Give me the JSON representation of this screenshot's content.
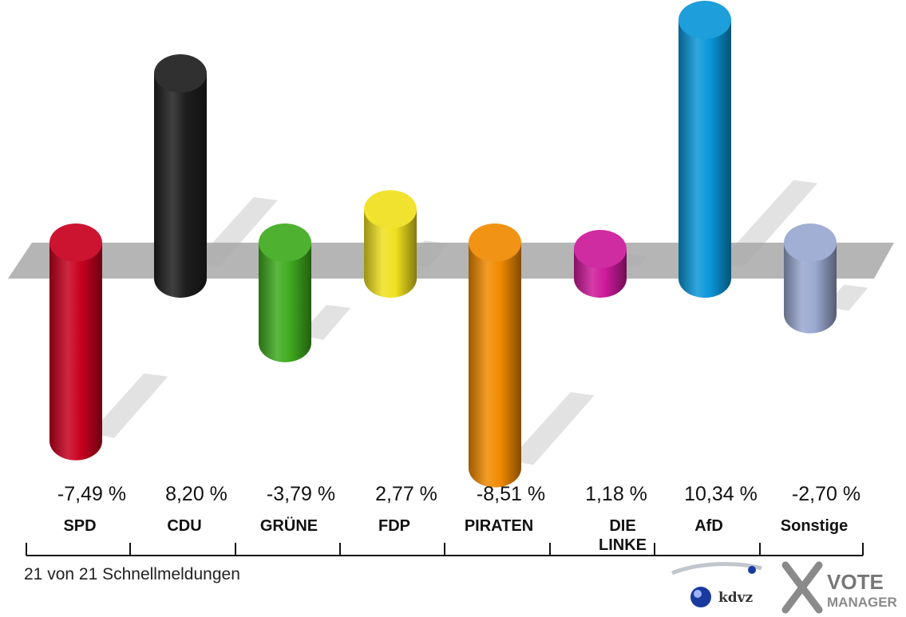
{
  "chart_data": {
    "type": "bar",
    "categories": [
      "SPD",
      "CDU",
      "GRÜNE",
      "FDP",
      "PIRATEN",
      "DIE LINKE",
      "AfD",
      "Sonstige"
    ],
    "category_lines": [
      [
        "SPD"
      ],
      [
        "CDU"
      ],
      [
        "GRÜNE"
      ],
      [
        "FDP"
      ],
      [
        "PIRATEN"
      ],
      [
        "DIE",
        "LINKE"
      ],
      [
        "AfD"
      ],
      [
        "Sonstige"
      ]
    ],
    "values": [
      -7.49,
      8.2,
      -3.79,
      2.77,
      -8.51,
      1.18,
      10.34,
      -2.7
    ],
    "value_labels": [
      "-7,49 %",
      "8,20 %",
      "-3,79 %",
      "2,77 %",
      "-8,51 %",
      "1,18 %",
      "10,34 %",
      "-2,70 %"
    ],
    "colors": [
      "#c8001e",
      "#1e1e1e",
      "#3faa1e",
      "#f0e01e",
      "#f08a00",
      "#cc1a9a",
      "#0a96d8",
      "#9aa8d0"
    ],
    "ylim": [
      -10.34,
      10.34
    ],
    "baseline": 0,
    "title": "",
    "xlabel": "",
    "ylabel": ""
  },
  "footer": {
    "status": "21 von 21 Schnellmeldungen"
  },
  "logos": {
    "kdvz": "kdvz",
    "vote": "VOTE",
    "manager": "MANAGER"
  }
}
